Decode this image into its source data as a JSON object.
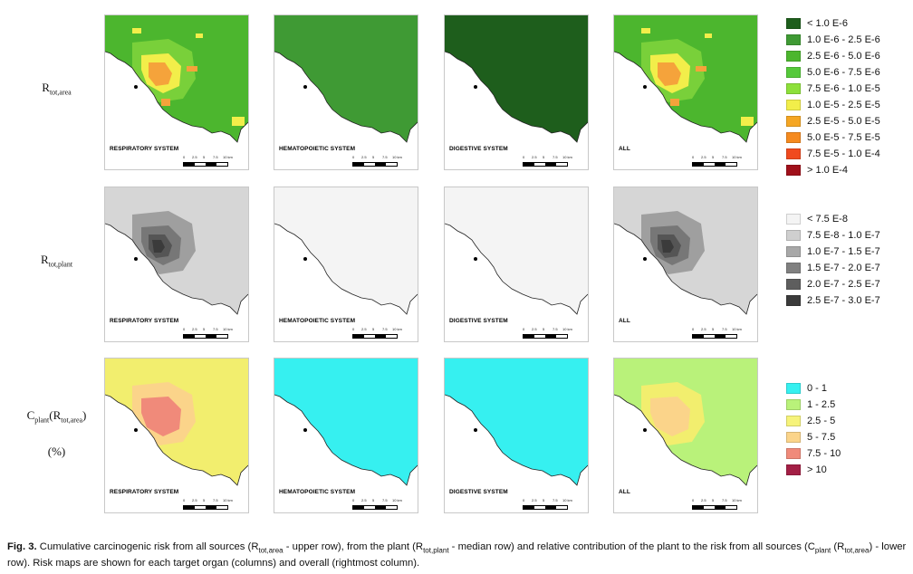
{
  "rows": [
    {
      "label": {
        "main": "R",
        "sub": "tot,area",
        "extra": ""
      },
      "panels": [
        {
          "label": "RESPIRATORY SYSTEM",
          "base": "#4cb62e",
          "shading": [
            "#79d03a",
            "#f2ee4a",
            "#f5a33b"
          ]
        },
        {
          "label": "HEMATOPOIETIC SYSTEM",
          "base": "#3f9a34",
          "shading": []
        },
        {
          "label": "DIGESTIVE SYSTEM",
          "base": "#1e5e1c",
          "shading": []
        },
        {
          "label": "ALL",
          "base": "#4cb62e",
          "shading": [
            "#79d03a",
            "#f2ee4a",
            "#f5a33b"
          ]
        }
      ]
    },
    {
      "label": {
        "main": "R",
        "sub": "tot,plant",
        "extra": ""
      },
      "panels": [
        {
          "label": "RESPIRATORY SYSTEM",
          "base": "#d6d6d6",
          "shading": [
            "#9f9f9f",
            "#777777",
            "#555555",
            "#3b3b3b"
          ]
        },
        {
          "label": "HEMATOPOIETIC SYSTEM",
          "base": "#f4f4f4",
          "shading": []
        },
        {
          "label": "DIGESTIVE SYSTEM",
          "base": "#f4f4f4",
          "shading": []
        },
        {
          "label": "ALL",
          "base": "#d6d6d6",
          "shading": [
            "#9f9f9f",
            "#777777",
            "#555555",
            "#3b3b3b"
          ]
        }
      ]
    },
    {
      "label": {
        "main": "C",
        "sub": "plant",
        "extra": "(R",
        "sub2": "tot,area",
        "close": ")",
        "pct": "(%)"
      },
      "panels": [
        {
          "label": "RESPIRATORY SYSTEM",
          "base": "#f2ee6e",
          "shading": [
            "#fbd48a",
            "#f08a7a"
          ]
        },
        {
          "label": "HEMATOPOIETIC SYSTEM",
          "base": "#36f0f0",
          "shading": []
        },
        {
          "label": "DIGESTIVE SYSTEM",
          "base": "#36f0f0",
          "shading": []
        },
        {
          "label": "ALL",
          "base": "#b9f27a",
          "shading": [
            "#f2ee6e",
            "#fbd48a"
          ]
        }
      ]
    }
  ],
  "scale": {
    "ticks": [
      "0",
      "2.5",
      "5",
      "7.5",
      "10 km"
    ]
  },
  "legends": [
    {
      "items": [
        {
          "color": "#1e5e1c",
          "label": "< 1.0 E-6"
        },
        {
          "color": "#3f9a34",
          "label": "1.0 E-6  -  2.5 E-6"
        },
        {
          "color": "#4cb62e",
          "label": "2.5 E-6  -  5.0 E-6"
        },
        {
          "color": "#55c93a",
          "label": "5.0 E-6  -  7.5 E-6"
        },
        {
          "color": "#8de03a",
          "label": "7.5 E-6  -  1.0 E-5"
        },
        {
          "color": "#f2ee4a",
          "label": "1.0 E-5  -  2.5 E-5"
        },
        {
          "color": "#f5a623",
          "label": "2.5 E-5  -  5.0 E-5"
        },
        {
          "color": "#f58a1f",
          "label": "5.0 E-5  -  7.5 E-5"
        },
        {
          "color": "#f04a1f",
          "label": "7.5 E-5  -  1.0 E-4"
        },
        {
          "color": "#a0101a",
          "label": "> 1.0  E-4"
        }
      ]
    },
    {
      "items": [
        {
          "color": "#f4f4f4",
          "label": "< 7.5  E-8"
        },
        {
          "color": "#cfcfcf",
          "label": "7.5 E-8  -  1.0 E-7"
        },
        {
          "color": "#a8a8a8",
          "label": "1.0 E-7  -  1.5 E-7"
        },
        {
          "color": "#808080",
          "label": "1.5 E-7  -  2.0 E-7"
        },
        {
          "color": "#5e5e5e",
          "label": "2.0 E-7  -  2.5 E-7"
        },
        {
          "color": "#3b3b3b",
          "label": "2.5 E-7  -  3.0 E-7"
        }
      ]
    },
    {
      "items": [
        {
          "color": "#36f0f0",
          "label": "0 - 1"
        },
        {
          "color": "#b9f27a",
          "label": "1 - 2.5"
        },
        {
          "color": "#f6f37a",
          "label": "2.5 - 5"
        },
        {
          "color": "#fbd48a",
          "label": "5 - 7.5"
        },
        {
          "color": "#f08a7a",
          "label": "7.5 - 10"
        },
        {
          "color": "#a31f45",
          "label": "> 10"
        }
      ]
    }
  ],
  "caption": {
    "fig": "Fig. 3.",
    "t1": " Cumulative carcinogenic risk from all sources (R",
    "s1": "tot,area",
    "t2": " - upper row), from the plant (R",
    "s2": "tot,plant",
    "t3": " - median row) and relative contribution of the plant to the risk from all sources (C",
    "s3": "plant",
    "t4": " (R",
    "s4": "tot,area",
    "t5": ") - lower row). Risk maps are shown for each target organ (columns) and overall (rightmost column)."
  }
}
